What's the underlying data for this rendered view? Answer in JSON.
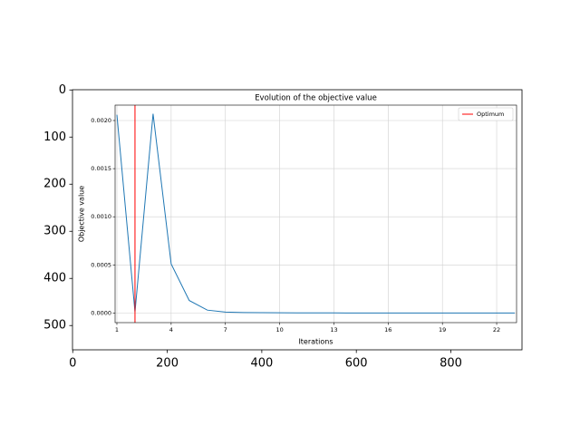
{
  "chart_data": [
    {
      "type": "image",
      "xlim": [
        -0.5,
        950.5
      ],
      "ylim": [
        551.5,
        -0.5
      ],
      "xticks": [
        0,
        200,
        400,
        600,
        800
      ],
      "yticks": [
        0,
        100,
        200,
        300,
        400,
        500
      ]
    },
    {
      "type": "line",
      "title": "Evolution of the objective value",
      "x_label": "Iterations",
      "y_label": "Objective value",
      "x": [
        1,
        2,
        3,
        4,
        5,
        6,
        7,
        8,
        9,
        10,
        11,
        12,
        13,
        14,
        15,
        16,
        17,
        18,
        19,
        20,
        21,
        22,
        23
      ],
      "series": [
        {
          "color": "#1f77b4",
          "values": [
            0.00206,
            1e-05,
            0.00207,
            0.00051,
            0.00013,
            3e-05,
            1e-05,
            5e-06,
            3e-06,
            2e-06,
            1e-06,
            1e-06,
            1e-06,
            0,
            0,
            0,
            0,
            0,
            0,
            0,
            0,
            0,
            0
          ]
        }
      ],
      "vlines": [
        {
          "x": 2,
          "label": "Optimum",
          "color": "#ff0000"
        }
      ],
      "xlim": [
        0.9,
        23.1
      ],
      "ylim": [
        -0.0001,
        0.00216
      ],
      "xticks": [
        1,
        4,
        7,
        10,
        13,
        16,
        19,
        22
      ],
      "yticks": [
        {
          "value": 0,
          "label": "0.0000"
        },
        {
          "value": 0.0005,
          "label": "0.0005"
        },
        {
          "value": 0.001,
          "label": "0.0010"
        },
        {
          "value": 0.0015,
          "label": "0.0015"
        },
        {
          "value": 0.002,
          "label": "0.0020"
        }
      ],
      "grid": true,
      "legend": "upper right"
    }
  ]
}
